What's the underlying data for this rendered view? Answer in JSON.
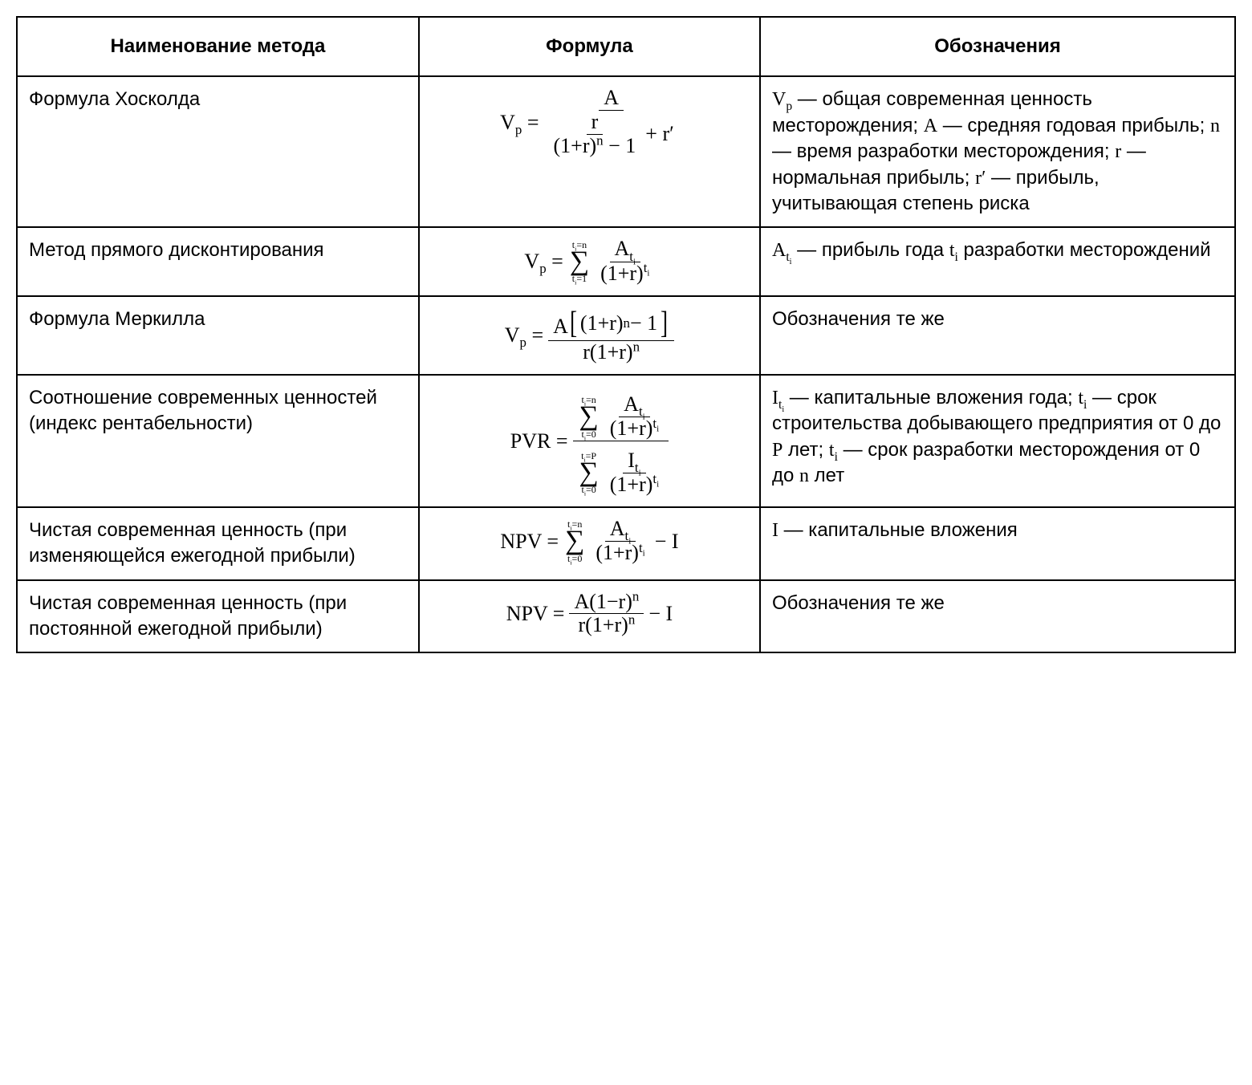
{
  "table": {
    "type": "table",
    "border_color": "#000000",
    "background_color": "#ffffff",
    "text_color": "#000000",
    "body_font_family": "Arial",
    "formula_font_family": "Times New Roman",
    "font_size_pt": 18,
    "column_widths_percent": [
      33,
      28,
      39
    ],
    "columns": [
      "Наименование метода",
      "Формула",
      "Обозначения"
    ],
    "rows": [
      {
        "method": "Формула Хосколда",
        "formula": {
          "display": "V_p = A / ( r / ((1+r)^n − 1) + r′ )",
          "lhs": "V_p",
          "numerator": "A",
          "denominator": "r / ((1+r)^n − 1) + r′"
        },
        "description": "V_p — общая современная ценность месторождения; A — средняя годовая прибыль; n — время разработки месторождения; r — нормальная прибыль; r′ — прибыль, учитывающая степень риска"
      },
      {
        "method": "Метод прямого дисконтирования",
        "formula": {
          "display": "V_p = Σ_{t_i=1}^{t_i=n} A_{t_i} / (1+r)^{t_i}",
          "lhs": "V_p",
          "sum_lower": "t_i=1",
          "sum_upper": "t_i=n",
          "term_num": "A_{t_i}",
          "term_den": "(1+r)^{t_i}"
        },
        "description": "A_{t_i} — прибыль года t_i разработки месторождений"
      },
      {
        "method": "Формула Меркилла",
        "formula": {
          "display": "V_p = A[(1+r)^n − 1] / ( r(1+r)^n )",
          "lhs": "V_p",
          "numerator": "A[(1+r)^n − 1]",
          "denominator": "r(1+r)^n"
        },
        "description": "Обозначения те же"
      },
      {
        "method": "Соотношение современных ценностей (индекс рентабельности)",
        "formula": {
          "display": "PVR = ( Σ_{t_i=0}^{t_i=n} A_{t_i}/(1+r)^{t_i} ) / ( Σ_{t_i=0}^{t_i=P} I_{t_i}/(1+r)^{t_i} )",
          "lhs": "PVR",
          "num_sum_lower": "t_i=0",
          "num_sum_upper": "t_i=n",
          "num_term_num": "A_{t_i}",
          "num_term_den": "(1+r)^{t_i}",
          "den_sum_lower": "t_i=0",
          "den_sum_upper": "t_i=P",
          "den_term_num": "I_{t_i}",
          "den_term_den": "(1+r)^{t_i}"
        },
        "description": "I_{t_i} — капитальные вложения года; t_i — срок строительства добывающего предприятия от 0 до P лет; t_i — срок разработки месторождения от 0 до n лет"
      },
      {
        "method": "Чистая современная ценность (при изменяющейся ежегодной прибыли)",
        "formula": {
          "display": "NPV = Σ_{t_i=0}^{t_i=n} A_{t_i}/(1+r)^{t_i} − I",
          "lhs": "NPV",
          "sum_lower": "t_i=0",
          "sum_upper": "t_i=n",
          "term_num": "A_{t_i}",
          "term_den": "(1+r)^{t_i}",
          "tail": "− I"
        },
        "description": "I — капитальные вложения"
      },
      {
        "method": "Чистая современная ценность (при постоянной ежегодной прибыли)",
        "formula": {
          "display": "NPV = A(1−r)^n / ( r(1+r)^n ) − I",
          "lhs": "NPV",
          "numerator": "A(1−r)^n",
          "denominator": "r(1+r)^n",
          "tail": "− I"
        },
        "description": "Обозначения те же"
      }
    ]
  }
}
